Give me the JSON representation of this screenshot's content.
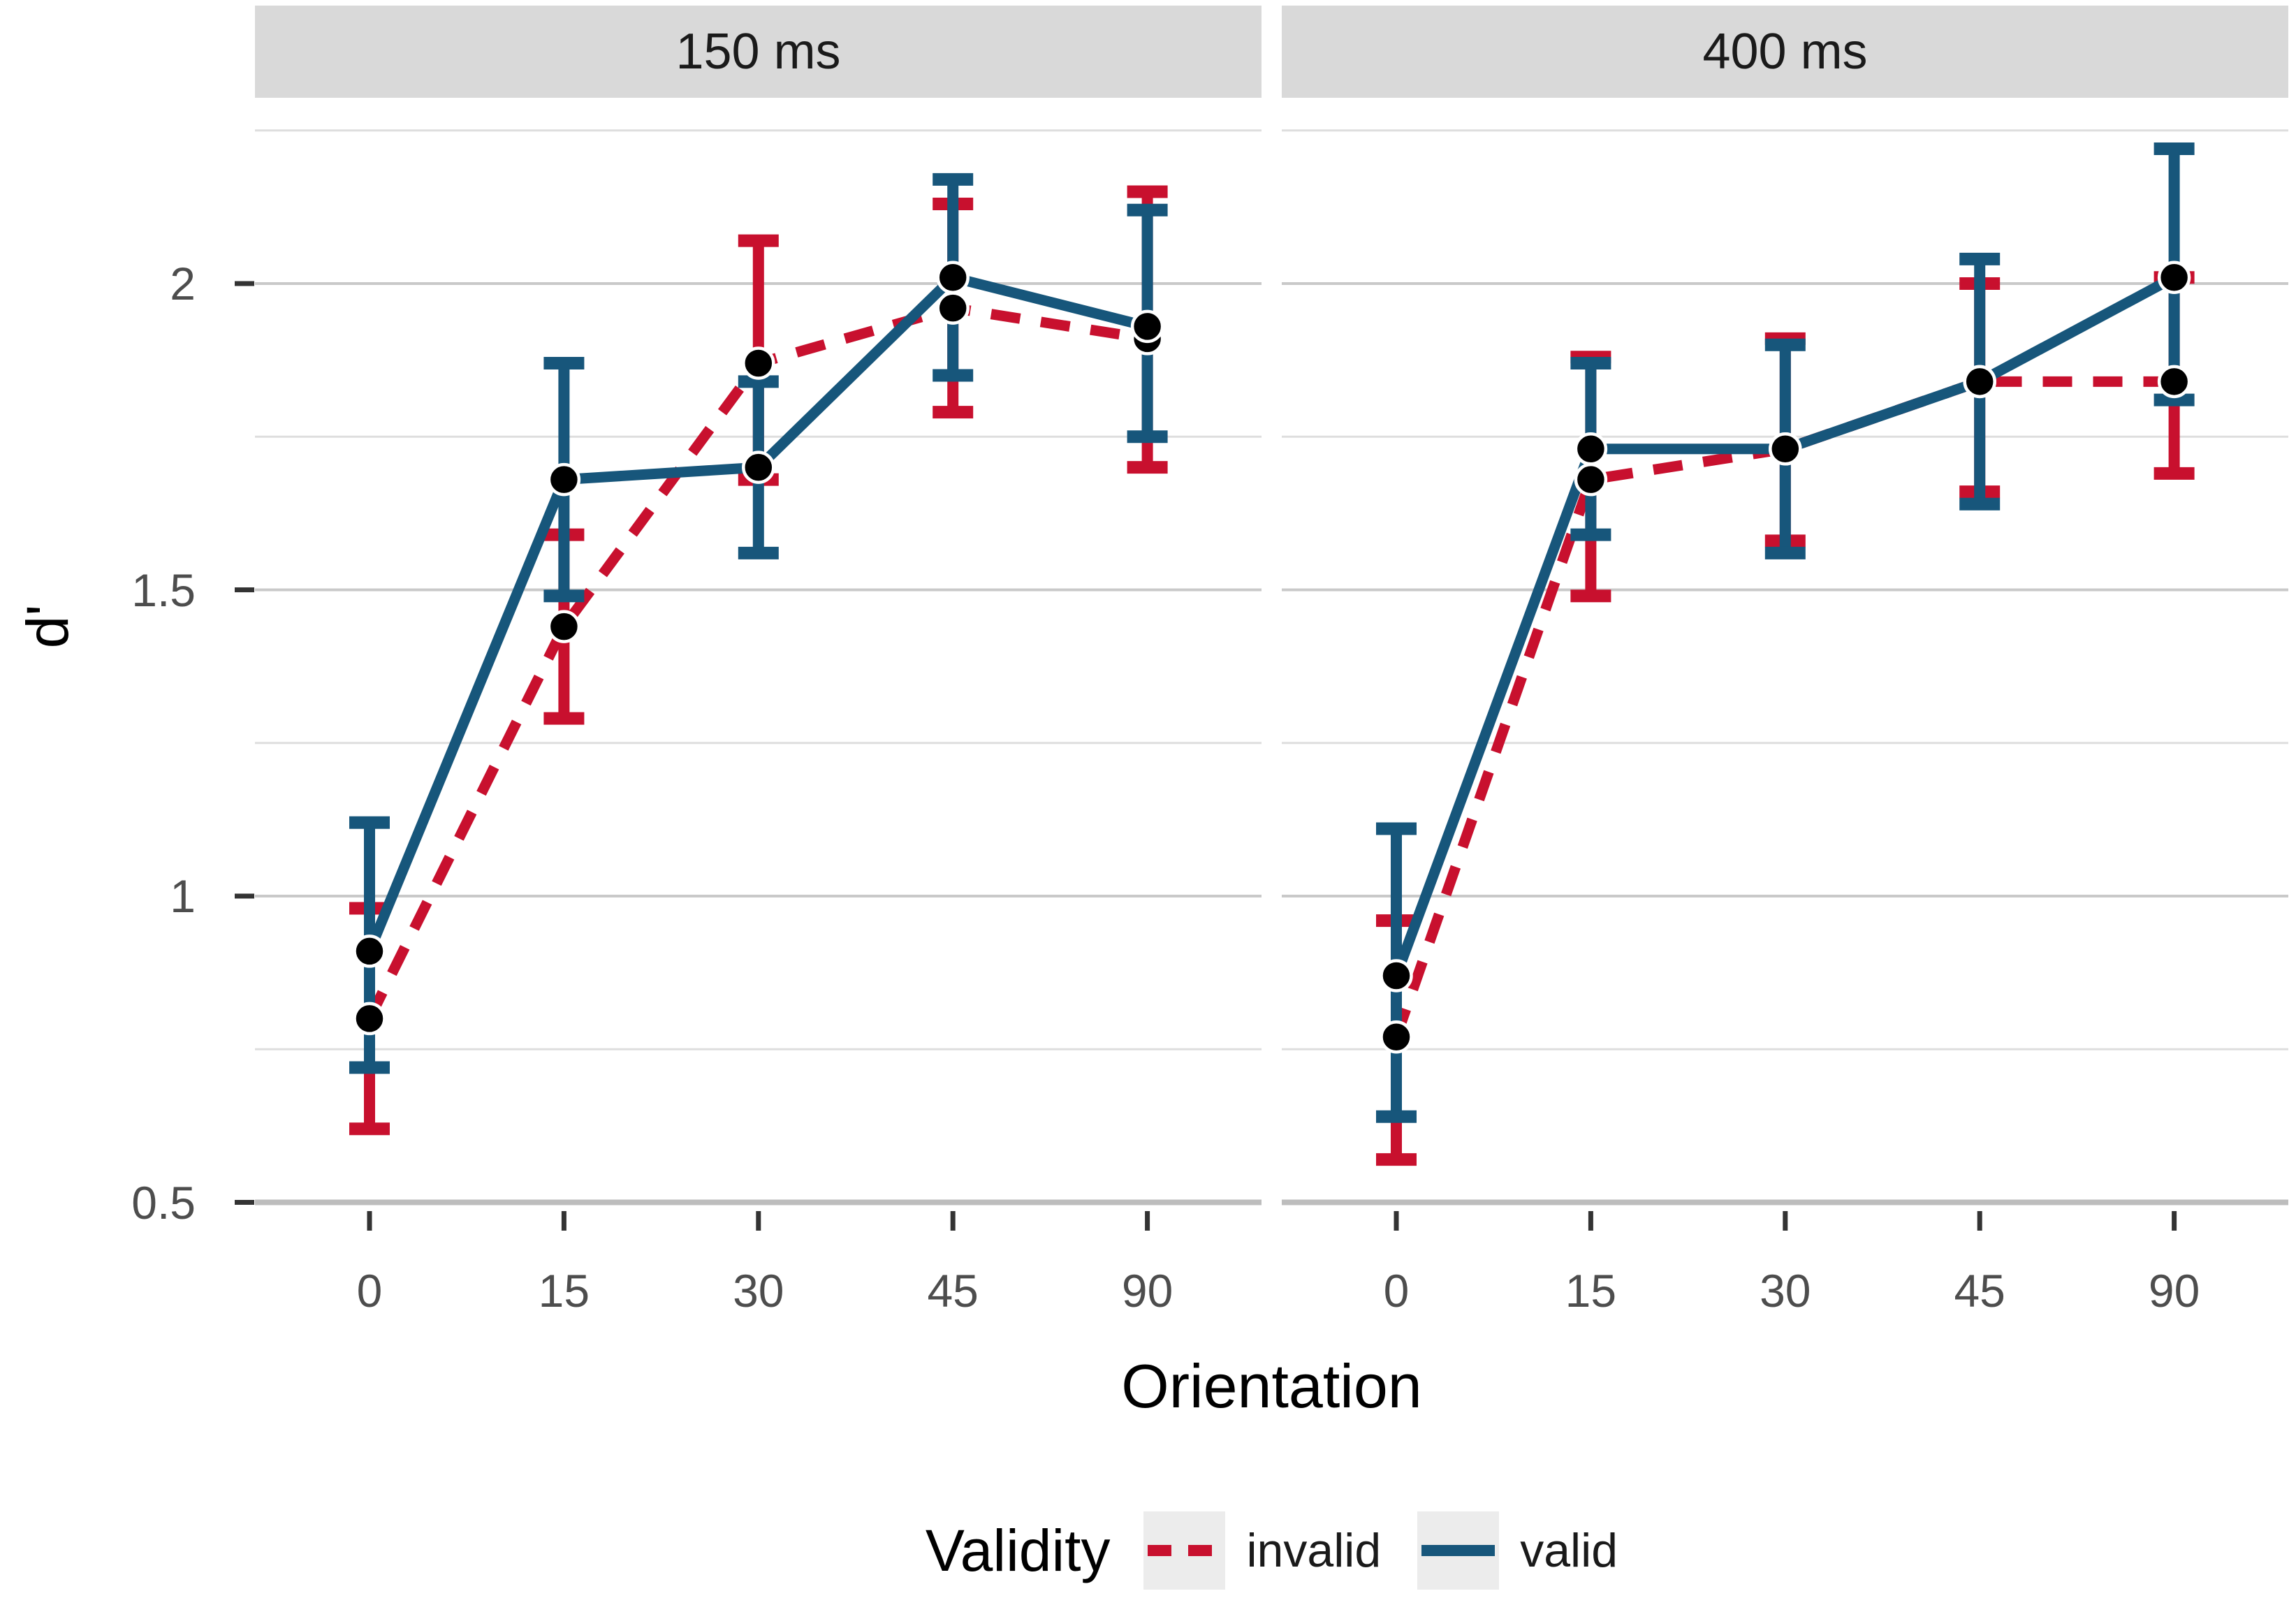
{
  "chart_data": {
    "type": "line",
    "title": "",
    "xlabel": "Orientation",
    "ylabel": "d'",
    "legend_title": "Validity",
    "legend_position": "bottom",
    "grid": "major+minor",
    "x_categories": [
      "0",
      "15",
      "30",
      "45",
      "90"
    ],
    "y_tick_labels": [
      "0.5",
      "1",
      "1.5",
      "2"
    ],
    "y_ticks": [
      0.5,
      1.0,
      1.5,
      2.0
    ],
    "y_minor_ticks": [
      0.75,
      1.25,
      1.75,
      2.25
    ],
    "ylim": [
      0.5,
      2.29
    ],
    "colors": {
      "invalid": "#C8102E",
      "valid": "#17567B",
      "point": "#000000",
      "strip_background": "#d9d9d9",
      "grid_major": "#c9c9c9",
      "grid_minor": "#dedede",
      "axis_line": "#bdbdbd",
      "tick_mark": "#333333",
      "legend_key_background": "#ececec"
    },
    "facets": [
      {
        "title": "150 ms",
        "series": [
          {
            "name": "invalid",
            "style": "dashed",
            "color": "#C8102E",
            "x": [
              0,
              15,
              30,
              45,
              90
            ],
            "y": [
              0.8,
              1.44,
              1.87,
              1.96,
              1.91
            ],
            "err_low": [
              0.62,
              1.29,
              1.68,
              1.79,
              1.7
            ],
            "err_high": [
              0.98,
              1.59,
              2.07,
              2.13,
              2.15
            ]
          },
          {
            "name": "valid",
            "style": "solid",
            "color": "#17567B",
            "x": [
              0,
              15,
              30,
              45,
              90
            ],
            "y": [
              0.91,
              1.68,
              1.7,
              2.01,
              1.93
            ],
            "err_low": [
              0.72,
              1.49,
              1.56,
              1.85,
              1.75
            ],
            "err_high": [
              1.12,
              1.87,
              1.84,
              2.17,
              2.12
            ]
          }
        ]
      },
      {
        "title": "400 ms",
        "series": [
          {
            "name": "invalid",
            "style": "dashed",
            "color": "#C8102E",
            "x": [
              0,
              15,
              30,
              45,
              90
            ],
            "y": [
              0.77,
              1.68,
              1.73,
              1.84,
              1.84
            ],
            "err_low": [
              0.57,
              1.49,
              1.58,
              1.66,
              1.69
            ],
            "err_high": [
              0.96,
              1.88,
              1.91,
              2.0,
              2.01
            ]
          },
          {
            "name": "valid",
            "style": "solid",
            "color": "#17567B",
            "x": [
              0,
              15,
              30,
              45,
              90
            ],
            "y": [
              0.87,
              1.73,
              1.73,
              1.84,
              2.01
            ],
            "err_low": [
              0.64,
              1.59,
              1.56,
              1.64,
              1.81
            ],
            "err_high": [
              1.11,
              1.87,
              1.9,
              2.04,
              2.22
            ]
          }
        ]
      }
    ]
  }
}
